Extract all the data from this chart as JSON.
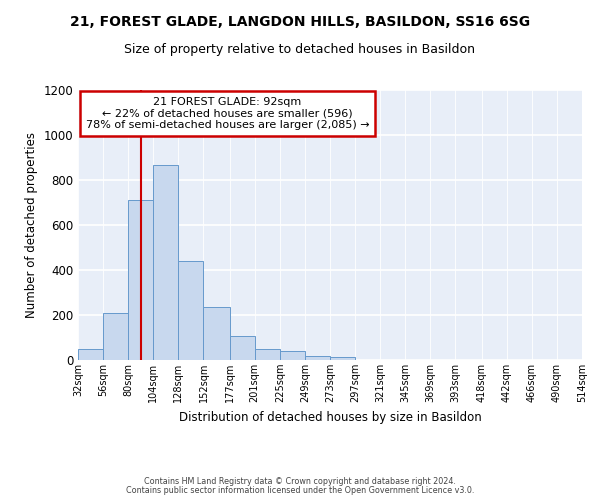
{
  "title1": "21, FOREST GLADE, LANGDON HILLS, BASILDON, SS16 6SG",
  "title2": "Size of property relative to detached houses in Basildon",
  "xlabel": "Distribution of detached houses by size in Basildon",
  "ylabel": "Number of detached properties",
  "bar_heights": [
    50,
    210,
    710,
    865,
    440,
    235,
    105,
    50,
    42,
    20,
    12,
    0,
    0,
    0,
    0,
    0,
    0,
    0,
    0,
    0
  ],
  "bin_edges": [
    32,
    56,
    80,
    104,
    128,
    152,
    177,
    201,
    225,
    249,
    273,
    297,
    321,
    345,
    369,
    393,
    418,
    442,
    466,
    490,
    514
  ],
  "tick_labels": [
    "32sqm",
    "56sqm",
    "80sqm",
    "104sqm",
    "128sqm",
    "152sqm",
    "177sqm",
    "201sqm",
    "225sqm",
    "249sqm",
    "273sqm",
    "297sqm",
    "321sqm",
    "345sqm",
    "369sqm",
    "393sqm",
    "418sqm",
    "442sqm",
    "466sqm",
    "490sqm",
    "514sqm"
  ],
  "bar_color": "#c8d8ee",
  "bar_edge_color": "#6699cc",
  "red_line_x": 92,
  "annotation_title": "21 FOREST GLADE: 92sqm",
  "annotation_line1": "← 22% of detached houses are smaller (596)",
  "annotation_line2": "78% of semi-detached houses are larger (2,085) →",
  "annotation_box_color": "#ffffff",
  "annotation_border_color": "#cc0000",
  "ylim": [
    0,
    1200
  ],
  "yticks": [
    0,
    200,
    400,
    600,
    800,
    1000,
    1200
  ],
  "footer1": "Contains HM Land Registry data © Crown copyright and database right 2024.",
  "footer2": "Contains public sector information licensed under the Open Government Licence v3.0.",
  "bg_color": "#e8eef8",
  "title1_fontsize": 10,
  "title2_fontsize": 9
}
